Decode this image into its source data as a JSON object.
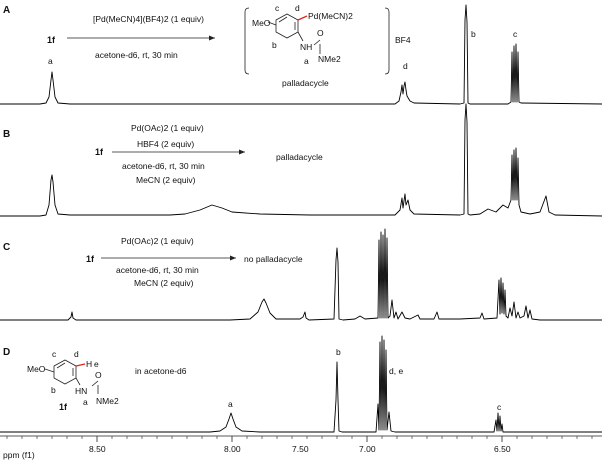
{
  "figure": {
    "axis": {
      "label": "ppm (f1)",
      "ticks": [
        "8.50",
        "8.00",
        "7.50",
        "7.00",
        "6.50"
      ]
    },
    "panels": [
      {
        "id": "A",
        "compound": "1f",
        "conditions_above": "[Pd(MeCN)4](BF4)2 (1 equiv)",
        "conditions_below": [
          "acetone-d6, rt, 30 min"
        ],
        "product": {
          "substituent": "MeO",
          "metal": "Pd(MeCN)2",
          "amine": "NH",
          "carbonyl": "O",
          "amide": "NMe2",
          "counterion": "BF4",
          "ring_labels": [
            "c",
            "d",
            "b",
            "a"
          ],
          "caption": "palladacycle"
        },
        "peak_labels": [
          "a",
          "d",
          "b",
          "c"
        ]
      },
      {
        "id": "B",
        "compound": "1f",
        "conditions_above": "Pd(OAc)2 (1 equiv)",
        "conditions_mid": "HBF4 (2 equiv)",
        "conditions_below": [
          "acetone-d6, rt, 30 min",
          "MeCN (2 equiv)"
        ],
        "outcome": "palladacycle"
      },
      {
        "id": "C",
        "compound": "1f",
        "conditions_above": "Pd(OAc)2 (1 equiv)",
        "conditions_below": [
          "acetone-d6, rt, 30 min",
          "MeCN (2 equiv)"
        ],
        "outcome": "no palladacycle"
      },
      {
        "id": "D",
        "compound": "1f",
        "solvent_note": "in acetone-d6",
        "structure": {
          "substituent": "MeO",
          "h_label": "H",
          "amine": "HN",
          "carbonyl": "O",
          "amide": "NMe2",
          "ring_labels": [
            "c",
            "d",
            "e",
            "b",
            "a"
          ]
        },
        "peak_labels": [
          "a",
          "b",
          "d, e",
          "c"
        ]
      }
    ]
  }
}
